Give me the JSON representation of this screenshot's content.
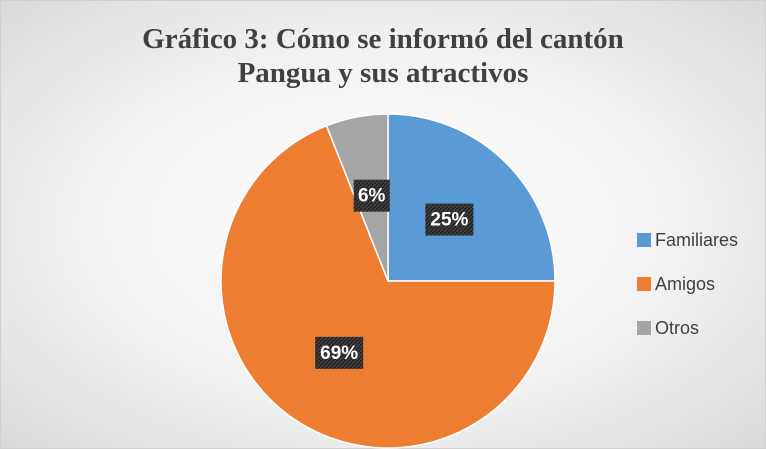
{
  "chart_data": {
    "type": "pie",
    "title": "Gráfico 3: Cómo se informó del cantón Pangua y sus atractivos",
    "categories": [
      "Familiares",
      "Amigos",
      "Otros"
    ],
    "values": [
      25,
      69,
      6
    ],
    "value_labels": [
      "25%",
      "69%",
      "6%"
    ],
    "colors": [
      "#5b9bd5",
      "#ed7d31",
      "#a5a5a5"
    ],
    "legend": "right"
  }
}
